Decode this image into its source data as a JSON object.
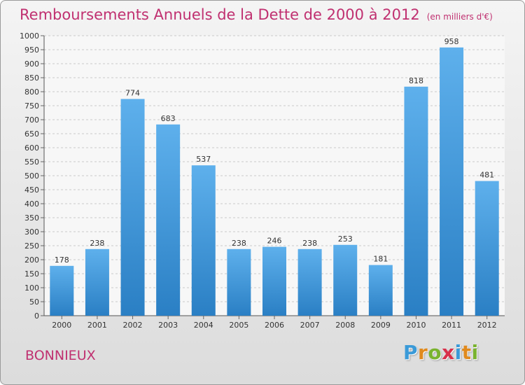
{
  "title": "Remboursements Annuels de la Dette de 2000 à 2012",
  "unit": "(en milliers d'€)",
  "commune": "BONNIEUX",
  "logo": {
    "letters": [
      {
        "ch": "P",
        "color": "#3a9ad8"
      },
      {
        "ch": "r",
        "color": "#e08a1e"
      },
      {
        "ch": "o",
        "color": "#7ab32e"
      },
      {
        "ch": "x",
        "color": "#d8304a"
      },
      {
        "ch": "i",
        "color": "#3a9ad8"
      },
      {
        "ch": "t",
        "color": "#e08a1e"
      },
      {
        "ch": "i",
        "color": "#7ab32e"
      }
    ]
  },
  "colors": {
    "bar_light": "#5eb0ec",
    "bar_dark": "#2a7fc4",
    "title": "#c03070",
    "text": "#333333"
  },
  "chart_data": {
    "type": "bar",
    "categories": [
      "2000",
      "2001",
      "2002",
      "2003",
      "2004",
      "2005",
      "2006",
      "2007",
      "2008",
      "2009",
      "2010",
      "2011",
      "2012"
    ],
    "values": [
      178,
      238,
      774,
      683,
      537,
      238,
      246,
      238,
      253,
      181,
      818,
      958,
      481
    ],
    "ylim": [
      0,
      1000
    ],
    "yticks": [
      0,
      50,
      100,
      150,
      200,
      250,
      300,
      350,
      400,
      450,
      500,
      550,
      600,
      650,
      700,
      750,
      800,
      850,
      900,
      950,
      1000
    ],
    "grid": true,
    "data_labels": true
  }
}
